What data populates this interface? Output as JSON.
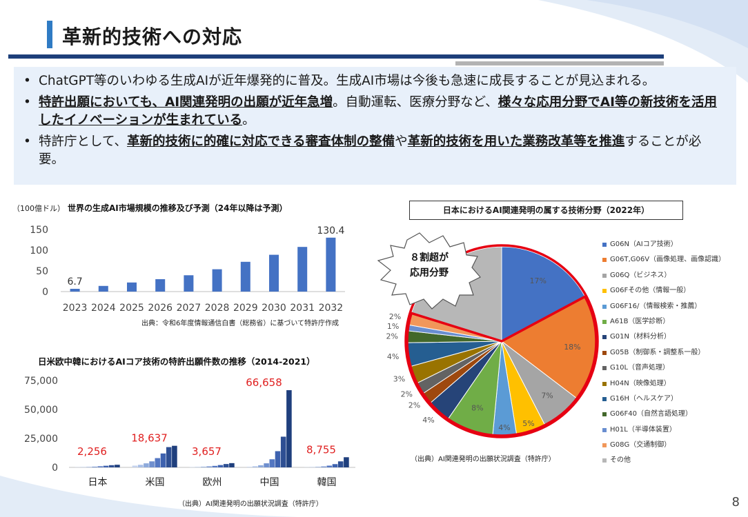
{
  "header": {
    "title": "革新的技術への対応"
  },
  "bullets": [
    {
      "parts": [
        {
          "t": "ChatGPT等のいわゆる生成AIが近年爆発的に普及。生成AI市場は今後も急速に成長することが見込まれる。",
          "b": false
        }
      ]
    },
    {
      "parts": [
        {
          "t": "特許出願においても、AI関連発明の出願が近年急増",
          "b": true
        },
        {
          "t": "。自動運転、医療分野など、",
          "b": false
        },
        {
          "t": "様々な応用分野でAI等の新技術を活用したイノベーションが生まれている",
          "b": true
        },
        {
          "t": "。",
          "b": false
        }
      ]
    },
    {
      "parts": [
        {
          "t": "特許庁として、",
          "b": false
        },
        {
          "t": "革新的技術に的確に対応できる審査体制の整備",
          "b": true
        },
        {
          "t": "や",
          "b": false
        },
        {
          "t": "革新的技術を用いた業務改革等を推進",
          "b": true
        },
        {
          "t": "することが必要。",
          "b": false
        }
      ]
    }
  ],
  "market_chart": {
    "unit_note": "（100億ドル）",
    "title": "世界の生成AI市場規模の推移及び予測（24年以降は予測）",
    "source": "出典：令和6年度情報通信白書（総務省）に基づいて特許庁作成"
  },
  "patent_chart": {
    "title": "日米欧中韓におけるAIコア技術の特許出願件数の推移（2014-2021）",
    "source": "（出典）AI関連発明の出願状況調査（特許庁）"
  },
  "pie_chart": {
    "title": "日本におけるAI関連発明の属する技術分野（2022年）",
    "callout": [
      "８割超が",
      "応用分野"
    ],
    "source": "（出典）AI関連発明の出願状況調査（特許庁）"
  },
  "chart_data": [
    {
      "type": "bar",
      "title": "世界の生成AI市場規模の推移及び予測（24年以降は予測）",
      "ylabel": "（100億ドル）",
      "categories": [
        "2023",
        "2024",
        "2025",
        "2026",
        "2027",
        "2028",
        "2029",
        "2030",
        "2031",
        "2032"
      ],
      "values": [
        6.7,
        13.7,
        22.0,
        30.0,
        39.5,
        54.0,
        72.0,
        89.0,
        108.0,
        130.4
      ],
      "data_labels": [
        "6.7",
        "",
        "",
        "",
        "",
        "",
        "",
        "",
        "",
        "130.4"
      ],
      "yticks": [
        0,
        50,
        100,
        150
      ],
      "ylim": [
        0,
        150
      ],
      "color": "#4472c4"
    },
    {
      "type": "bar",
      "title": "日米欧中韓におけるAIコア技術の特許出願件数の推移（2014-2021）",
      "groups": [
        "日本",
        "米国",
        "欧州",
        "中国",
        "韓国"
      ],
      "group_labels": [
        "2,256",
        "18,637",
        "3,657",
        "66,658",
        "8,755"
      ],
      "series_years": [
        "2014",
        "2015",
        "2016",
        "2017",
        "2018",
        "2019",
        "2020",
        "2021"
      ],
      "values": [
        [
          180,
          260,
          380,
          600,
          950,
          1400,
          1900,
          2256
        ],
        [
          1500,
          2200,
          3500,
          5200,
          8000,
          12000,
          17500,
          18637
        ],
        [
          250,
          350,
          550,
          850,
          1300,
          2000,
          2900,
          3657
        ],
        [
          500,
          900,
          1800,
          3500,
          7000,
          14000,
          26500,
          66658
        ],
        [
          150,
          250,
          450,
          800,
          1500,
          2800,
          5200,
          8755
        ]
      ],
      "yticks": [
        0,
        25000,
        50000,
        75000
      ],
      "ytick_labels": [
        "0",
        "25,000",
        "50,000",
        "75,000"
      ],
      "ylim": [
        0,
        75000
      ],
      "colors": [
        "#c5d3ed",
        "#a9bfe6",
        "#8eaadb",
        "#6f8fce",
        "#5477c2",
        "#3e62af",
        "#2e4f93",
        "#1f3f7d"
      ]
    },
    {
      "type": "pie",
      "title": "日本におけるAI関連発明の属する技術分野（2022年）",
      "slices": [
        {
          "name": "G06N（AIコア技術）",
          "value": 17,
          "label": "17%",
          "color": "#4472c4"
        },
        {
          "name": "G06T,G06V（画像処理、画像認識）",
          "value": 18,
          "label": "18%",
          "color": "#ed7d31"
        },
        {
          "name": "G06Q（ビジネス）",
          "value": 7,
          "label": "7%",
          "color": "#a5a5a5"
        },
        {
          "name": "G06Fその他（情報一般）",
          "value": 5,
          "label": "5%",
          "color": "#ffc000"
        },
        {
          "name": "G06F16/（情報検索・推薦）",
          "value": 4,
          "label": "4%",
          "color": "#5b9bd5"
        },
        {
          "name": "A61B（医学診断）",
          "value": 8,
          "label": "8%",
          "color": "#70ad47"
        },
        {
          "name": "G01N（材料分析）",
          "value": 4,
          "label": "4%",
          "color": "#264478"
        },
        {
          "name": "G05B（制御系・調整系一般）",
          "value": 2,
          "label": "2%",
          "color": "#9e480e"
        },
        {
          "name": "G10L（音声処理）",
          "value": 2,
          "label": "2%",
          "color": "#636363"
        },
        {
          "name": "H04N（映像処理）",
          "value": 3,
          "label": "3%",
          "color": "#997300"
        },
        {
          "name": "G16H（ヘルスケア）",
          "value": 4,
          "label": "4%",
          "color": "#255e91"
        },
        {
          "name": "G06F40（自然言語処理）",
          "value": 2,
          "label": "2%",
          "color": "#43682b"
        },
        {
          "name": "H01L（半導体装置）",
          "value": 1,
          "label": "1%",
          "color": "#698ed0"
        },
        {
          "name": "G08G（交通制御）",
          "value": 2,
          "label": "2%",
          "color": "#f1975a"
        },
        {
          "name": "その他",
          "value": 20,
          "label": "20%",
          "color": "#b7b7b7"
        }
      ]
    }
  ],
  "page_number": "8"
}
